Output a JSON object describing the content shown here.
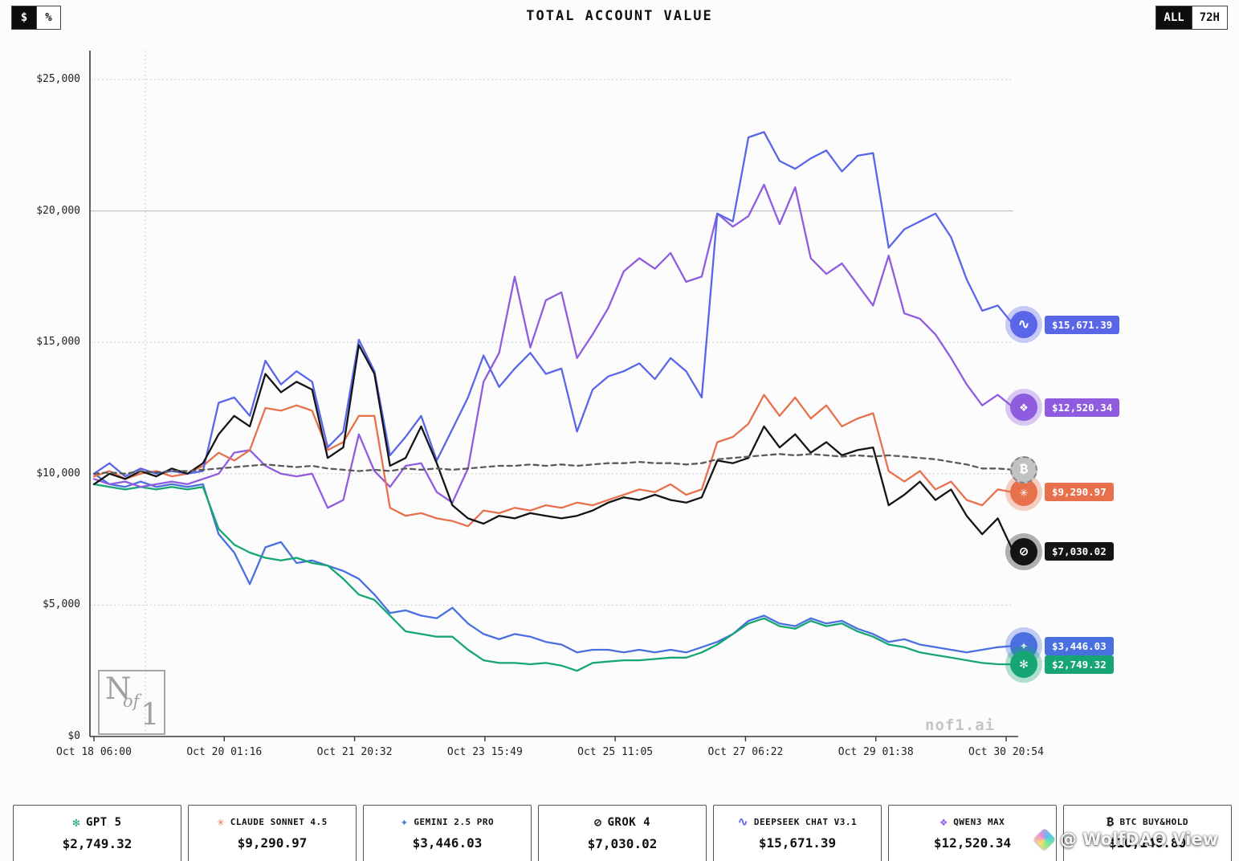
{
  "header": {
    "title": "TOTAL ACCOUNT VALUE",
    "unit_toggle": [
      {
        "label": "$",
        "active": true
      },
      {
        "label": "%",
        "active": false
      }
    ],
    "range_toggle": [
      {
        "label": "ALL",
        "active": true
      },
      {
        "label": "72H",
        "active": false
      }
    ]
  },
  "chart_data": {
    "type": "line",
    "title": "TOTAL ACCOUNT VALUE",
    "xlabel": "",
    "ylabel": "",
    "ylim": [
      0,
      25000
    ],
    "grid": true,
    "legend_position": "bottom",
    "yticks": [
      {
        "value": 0,
        "label": "$0"
      },
      {
        "value": 5000,
        "label": "$5,000"
      },
      {
        "value": 10000,
        "label": "$10,000"
      },
      {
        "value": 15000,
        "label": "$15,000"
      },
      {
        "value": 20000,
        "label": "$20,000"
      },
      {
        "value": 25000,
        "label": "$25,000"
      }
    ],
    "xticks": [
      "Oct 18 06:00",
      "Oct 20 01:16",
      "Oct 21 20:32",
      "Oct 23 15:49",
      "Oct 25 11:05",
      "Oct 27 06:22",
      "Oct 29 01:38",
      "Oct 30 20:54"
    ],
    "series": [
      {
        "key": "gemini",
        "name": "GEMINI 2.5 PRO",
        "color": "#4a70e0",
        "glyph": "✦",
        "icon": "gemini-icon",
        "dashed": false,
        "end_label": "$3,446.03",
        "values": [
          10000,
          9600,
          9500,
          9700,
          9500,
          9600,
          9500,
          9600,
          7700,
          7000,
          5800,
          7200,
          7400,
          6600,
          6700,
          6500,
          6300,
          6000,
          5400,
          4700,
          4800,
          4600,
          4500,
          4900,
          4300,
          3900,
          3700,
          3900,
          3800,
          3600,
          3500,
          3200,
          3300,
          3300,
          3200,
          3300,
          3200,
          3300,
          3200,
          3400,
          3600,
          3900,
          4400,
          4600,
          4300,
          4200,
          4500,
          4300,
          4400,
          4100,
          3900,
          3600,
          3700,
          3500,
          3400,
          3300,
          3200,
          3300,
          3400,
          3446
        ]
      },
      {
        "key": "gpt",
        "name": "GPT 5",
        "color": "#17a673",
        "glyph": "✻",
        "icon": "openai-icon",
        "dashed": false,
        "end_label": "$2,749.32",
        "values": [
          9600,
          9500,
          9400,
          9500,
          9400,
          9500,
          9400,
          9500,
          7900,
          7300,
          7000,
          6800,
          6700,
          6800,
          6600,
          6500,
          6000,
          5400,
          5200,
          4600,
          4000,
          3900,
          3800,
          3800,
          3300,
          2900,
          2800,
          2800,
          2750,
          2800,
          2700,
          2500,
          2800,
          2850,
          2900,
          2900,
          2950,
          3000,
          3000,
          3200,
          3500,
          3900,
          4300,
          4500,
          4200,
          4100,
          4400,
          4200,
          4300,
          4000,
          3800,
          3500,
          3400,
          3200,
          3100,
          3000,
          2900,
          2800,
          2750,
          2749
        ]
      },
      {
        "key": "qwen",
        "name": "QWEN3 MAX",
        "color": "#8f5ce0",
        "glyph": "❖",
        "icon": "qwen-icon",
        "dashed": false,
        "end_label": "$12,520.34",
        "values": [
          9800,
          9600,
          9700,
          9500,
          9600,
          9700,
          9600,
          9800,
          10000,
          10800,
          10900,
          10300,
          10000,
          9900,
          10000,
          8700,
          9000,
          11500,
          10100,
          9500,
          10300,
          10400,
          9300,
          8900,
          10200,
          13500,
          14600,
          17500,
          14800,
          16600,
          16900,
          14400,
          15300,
          16300,
          17700,
          18200,
          17800,
          18400,
          17300,
          17500,
          19900,
          19400,
          19800,
          21000,
          19500,
          20900,
          18200,
          17600,
          18000,
          17200,
          16400,
          18300,
          16100,
          15900,
          15300,
          14400,
          13400,
          12600,
          13000,
          12520
        ]
      },
      {
        "key": "claude",
        "name": "CLAUDE SONNET 4.5",
        "color": "#e8714d",
        "glyph": "✳",
        "icon": "claude-icon",
        "dashed": false,
        "end_label": "$9,290.97",
        "values": [
          9900,
          10100,
          9800,
          10000,
          10100,
          9900,
          10000,
          10300,
          10800,
          10500,
          10900,
          12500,
          12400,
          12600,
          12400,
          10900,
          11200,
          12200,
          12200,
          8700,
          8400,
          8500,
          8300,
          8200,
          8000,
          8600,
          8500,
          8700,
          8600,
          8800,
          8700,
          8900,
          8800,
          9000,
          9200,
          9400,
          9300,
          9600,
          9200,
          9400,
          11200,
          11400,
          11900,
          13000,
          12200,
          12900,
          12100,
          12600,
          11800,
          12100,
          12300,
          10100,
          9700,
          10100,
          9400,
          9700,
          9000,
          8800,
          9400,
          9291
        ]
      },
      {
        "key": "deepseek",
        "name": "DEEPSEEK CHAT V3.1",
        "color": "#5a66e8",
        "glyph": "∿",
        "icon": "deepseek-icon",
        "dashed": false,
        "end_label": "$15,671.39",
        "values": [
          10000,
          10400,
          9900,
          10200,
          10000,
          10100,
          10000,
          10100,
          12700,
          12900,
          12200,
          14300,
          13400,
          13900,
          13500,
          11000,
          11600,
          15100,
          13900,
          10700,
          11400,
          12200,
          10500,
          11700,
          12900,
          14500,
          13300,
          14000,
          14600,
          13800,
          14000,
          11600,
          13200,
          13700,
          13900,
          14200,
          13600,
          14400,
          13900,
          12900,
          19900,
          19600,
          22800,
          23000,
          21900,
          21600,
          22000,
          22300,
          21500,
          22100,
          22200,
          18600,
          19300,
          19600,
          19900,
          19000,
          17400,
          16200,
          16400,
          15671
        ]
      },
      {
        "key": "grok",
        "name": "GROK 4",
        "color": "#141414",
        "glyph": "⊘",
        "icon": "grok-icon",
        "dashed": false,
        "end_label": "$7,030.02",
        "values": [
          9600,
          10000,
          9800,
          10100,
          9900,
          10200,
          10000,
          10400,
          11500,
          12200,
          11800,
          13800,
          13100,
          13500,
          13200,
          10600,
          11000,
          14900,
          13800,
          10300,
          10600,
          11800,
          10400,
          8800,
          8300,
          8100,
          8400,
          8300,
          8500,
          8400,
          8300,
          8400,
          8600,
          8900,
          9100,
          9000,
          9200,
          9000,
          8900,
          9100,
          10500,
          10400,
          10600,
          11800,
          11000,
          11500,
          10800,
          11200,
          10700,
          10900,
          11000,
          8800,
          9200,
          9700,
          9000,
          9400,
          8400,
          7700,
          8300,
          7030
        ]
      },
      {
        "key": "btc",
        "name": "BTC BUY&HOLD",
        "color": "#5a5a5a",
        "glyph": "₿",
        "icon": "btc-icon",
        "dashed": true,
        "end_label": null,
        "values": [
          10000,
          10050,
          10000,
          10100,
          10050,
          10100,
          10100,
          10150,
          10200,
          10250,
          10300,
          10350,
          10300,
          10250,
          10300,
          10200,
          10150,
          10100,
          10150,
          10100,
          10200,
          10150,
          10200,
          10150,
          10200,
          10250,
          10300,
          10300,
          10350,
          10300,
          10350,
          10300,
          10350,
          10400,
          10400,
          10450,
          10400,
          10400,
          10350,
          10400,
          10550,
          10600,
          10650,
          10700,
          10750,
          10700,
          10750,
          10700,
          10650,
          10700,
          10650,
          10700,
          10650,
          10600,
          10550,
          10450,
          10350,
          10200,
          10200,
          10150
        ]
      }
    ]
  },
  "watermarks": {
    "logo": {
      "n": "N",
      "of": "of",
      "one": "1"
    },
    "site": "nof1.ai",
    "overlay": "@ WolfDAO View"
  },
  "footer": {
    "cards": [
      {
        "icon": "openai-icon",
        "glyph": "✻",
        "color": "#17a673",
        "name": "GPT 5",
        "value": "$2,749.32"
      },
      {
        "icon": "claude-icon",
        "glyph": "✳",
        "color": "#e8714d",
        "name": "CLAUDE SONNET 4.5",
        "value": "$9,290.97"
      },
      {
        "icon": "gemini-icon",
        "glyph": "✦",
        "color": "#4a70e0",
        "name": "GEMINI 2.5 PRO",
        "value": "$3,446.03"
      },
      {
        "icon": "grok-icon",
        "glyph": "⊘",
        "color": "#141414",
        "name": "GROK 4",
        "value": "$7,030.02"
      },
      {
        "icon": "deepseek-icon",
        "glyph": "∿",
        "color": "#5a66e8",
        "name": "DEEPSEEK CHAT V3.1",
        "value": "$15,671.39"
      },
      {
        "icon": "qwen-icon",
        "glyph": "❖",
        "color": "#8f5ce0",
        "name": "QWEN3 MAX",
        "value": "$12,520.34"
      },
      {
        "icon": "btc-icon",
        "glyph": "₿",
        "color": "#141414",
        "name": "BTC BUY&HOLD",
        "value": "$10,146.80"
      }
    ]
  }
}
